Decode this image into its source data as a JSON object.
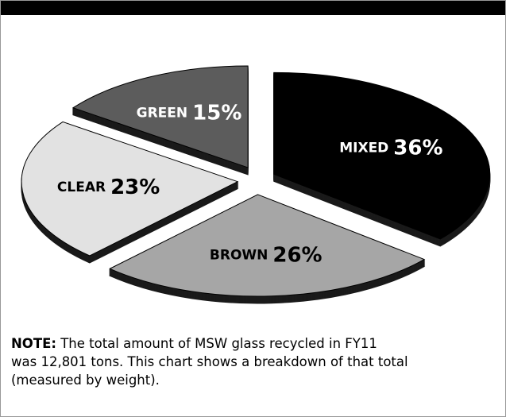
{
  "chart_data": {
    "type": "pie",
    "categories": [
      "MIXED",
      "BROWN",
      "CLEAR",
      "GREEN"
    ],
    "values": [
      36,
      26,
      23,
      15
    ],
    "value_labels": [
      "36%",
      "26%",
      "23%",
      "15%"
    ],
    "colors": [
      "#000000",
      "#a6a6a6",
      "#e2e2e2",
      "#5c5c5c"
    ],
    "label_colors": [
      "#ffffff",
      "#000000",
      "#000000",
      "#ffffff"
    ]
  },
  "note": {
    "label": "NOTE:",
    "lines": [
      "The total amount of MSW glass recycled in FY11",
      "was 12,801 tons. This chart shows a breakdown of that total",
      "(measured by weight)."
    ]
  }
}
